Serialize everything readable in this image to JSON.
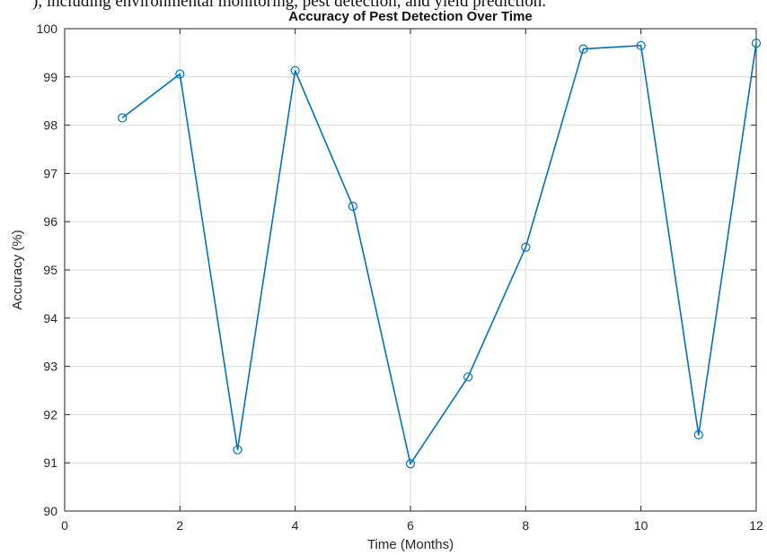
{
  "page": {
    "cut_text": "), including environmental monitoring, pest detection, and yield prediction."
  },
  "chart_data": {
    "type": "line",
    "title": "Accuracy of Pest Detection Over Time",
    "xlabel": "Time (Months)",
    "ylabel": "Accuracy (%)",
    "xlim": [
      0,
      12
    ],
    "ylim": [
      90,
      100
    ],
    "xticks": [
      0,
      2,
      4,
      6,
      8,
      10,
      12
    ],
    "yticks": [
      90,
      91,
      92,
      93,
      94,
      95,
      96,
      97,
      98,
      99,
      100
    ],
    "grid": true,
    "marker": "circle",
    "series": [
      {
        "x": [
          1,
          2,
          3,
          4,
          5,
          6,
          7,
          8,
          9,
          10,
          11,
          12
        ],
        "values": [
          98.15,
          99.06,
          91.27,
          99.13,
          96.32,
          90.98,
          92.78,
          95.47,
          99.58,
          99.65,
          91.58,
          99.7
        ],
        "color": "#0072BD"
      }
    ]
  }
}
